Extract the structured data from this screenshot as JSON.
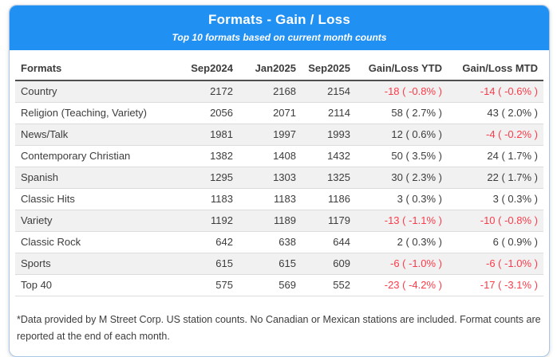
{
  "colors": {
    "header_background": "#2190f3",
    "header_text": "#ffffff",
    "card_border": "#a9c7e7",
    "negative_text": "#fb3b49",
    "default_text": "#3c3c3c",
    "row_stripe": "#f1f1f1",
    "header_rule": "#4f4f4f"
  },
  "header": {
    "title": "Formats - Gain / Loss",
    "subtitle": "Top 10 formats based on current month counts"
  },
  "chart_data": {
    "type": "table",
    "title": "Formats - Gain / Loss",
    "subtitle": "Top 10 formats based on current month counts",
    "columns": [
      "Formats",
      "Sep2024",
      "Jan2025",
      "Sep2025",
      "Gain/Loss YTD",
      "Gain/Loss MTD"
    ],
    "rows": [
      {
        "format": "Country",
        "sep2024": 2172,
        "jan2025": 2168,
        "sep2025": 2154,
        "gain_loss_ytd": "-18 ( -0.8% )",
        "ytd_negative": true,
        "gain_loss_mtd": "-14 ( -0.6% )",
        "mtd_negative": true
      },
      {
        "format": "Religion (Teaching, Variety)",
        "sep2024": 2056,
        "jan2025": 2071,
        "sep2025": 2114,
        "gain_loss_ytd": "58 ( 2.7% )",
        "ytd_negative": false,
        "gain_loss_mtd": "43 ( 2.0% )",
        "mtd_negative": false
      },
      {
        "format": "News/Talk",
        "sep2024": 1981,
        "jan2025": 1997,
        "sep2025": 1993,
        "gain_loss_ytd": "12 ( 0.6% )",
        "ytd_negative": false,
        "gain_loss_mtd": "-4 ( -0.2% )",
        "mtd_negative": true
      },
      {
        "format": "Contemporary Christian",
        "sep2024": 1382,
        "jan2025": 1408,
        "sep2025": 1432,
        "gain_loss_ytd": "50 ( 3.5% )",
        "ytd_negative": false,
        "gain_loss_mtd": "24 ( 1.7% )",
        "mtd_negative": false
      },
      {
        "format": "Spanish",
        "sep2024": 1295,
        "jan2025": 1303,
        "sep2025": 1325,
        "gain_loss_ytd": "30 ( 2.3% )",
        "ytd_negative": false,
        "gain_loss_mtd": "22 ( 1.7% )",
        "mtd_negative": false
      },
      {
        "format": "Classic Hits",
        "sep2024": 1183,
        "jan2025": 1183,
        "sep2025": 1186,
        "gain_loss_ytd": "3 ( 0.3% )",
        "ytd_negative": false,
        "gain_loss_mtd": "3 ( 0.3% )",
        "mtd_negative": false
      },
      {
        "format": "Variety",
        "sep2024": 1192,
        "jan2025": 1189,
        "sep2025": 1179,
        "gain_loss_ytd": "-13 ( -1.1% )",
        "ytd_negative": true,
        "gain_loss_mtd": "-10 ( -0.8% )",
        "mtd_negative": true
      },
      {
        "format": "Classic Rock",
        "sep2024": 642,
        "jan2025": 638,
        "sep2025": 644,
        "gain_loss_ytd": "2 ( 0.3% )",
        "ytd_negative": false,
        "gain_loss_mtd": "6 ( 0.9% )",
        "mtd_negative": false
      },
      {
        "format": "Sports",
        "sep2024": 615,
        "jan2025": 615,
        "sep2025": 609,
        "gain_loss_ytd": "-6 ( -1.0% )",
        "ytd_negative": true,
        "gain_loss_mtd": "-6 ( -1.0% )",
        "mtd_negative": true
      },
      {
        "format": "Top 40",
        "sep2024": 575,
        "jan2025": 569,
        "sep2025": 552,
        "gain_loss_ytd": "-23 ( -4.2% )",
        "ytd_negative": true,
        "gain_loss_mtd": "-17 ( -3.1% )",
        "mtd_negative": true
      }
    ]
  },
  "footnote": "*Data provided by M Street Corp. US station counts. No Canadian or Mexican stations are included. Format counts are reported at the end of each month."
}
